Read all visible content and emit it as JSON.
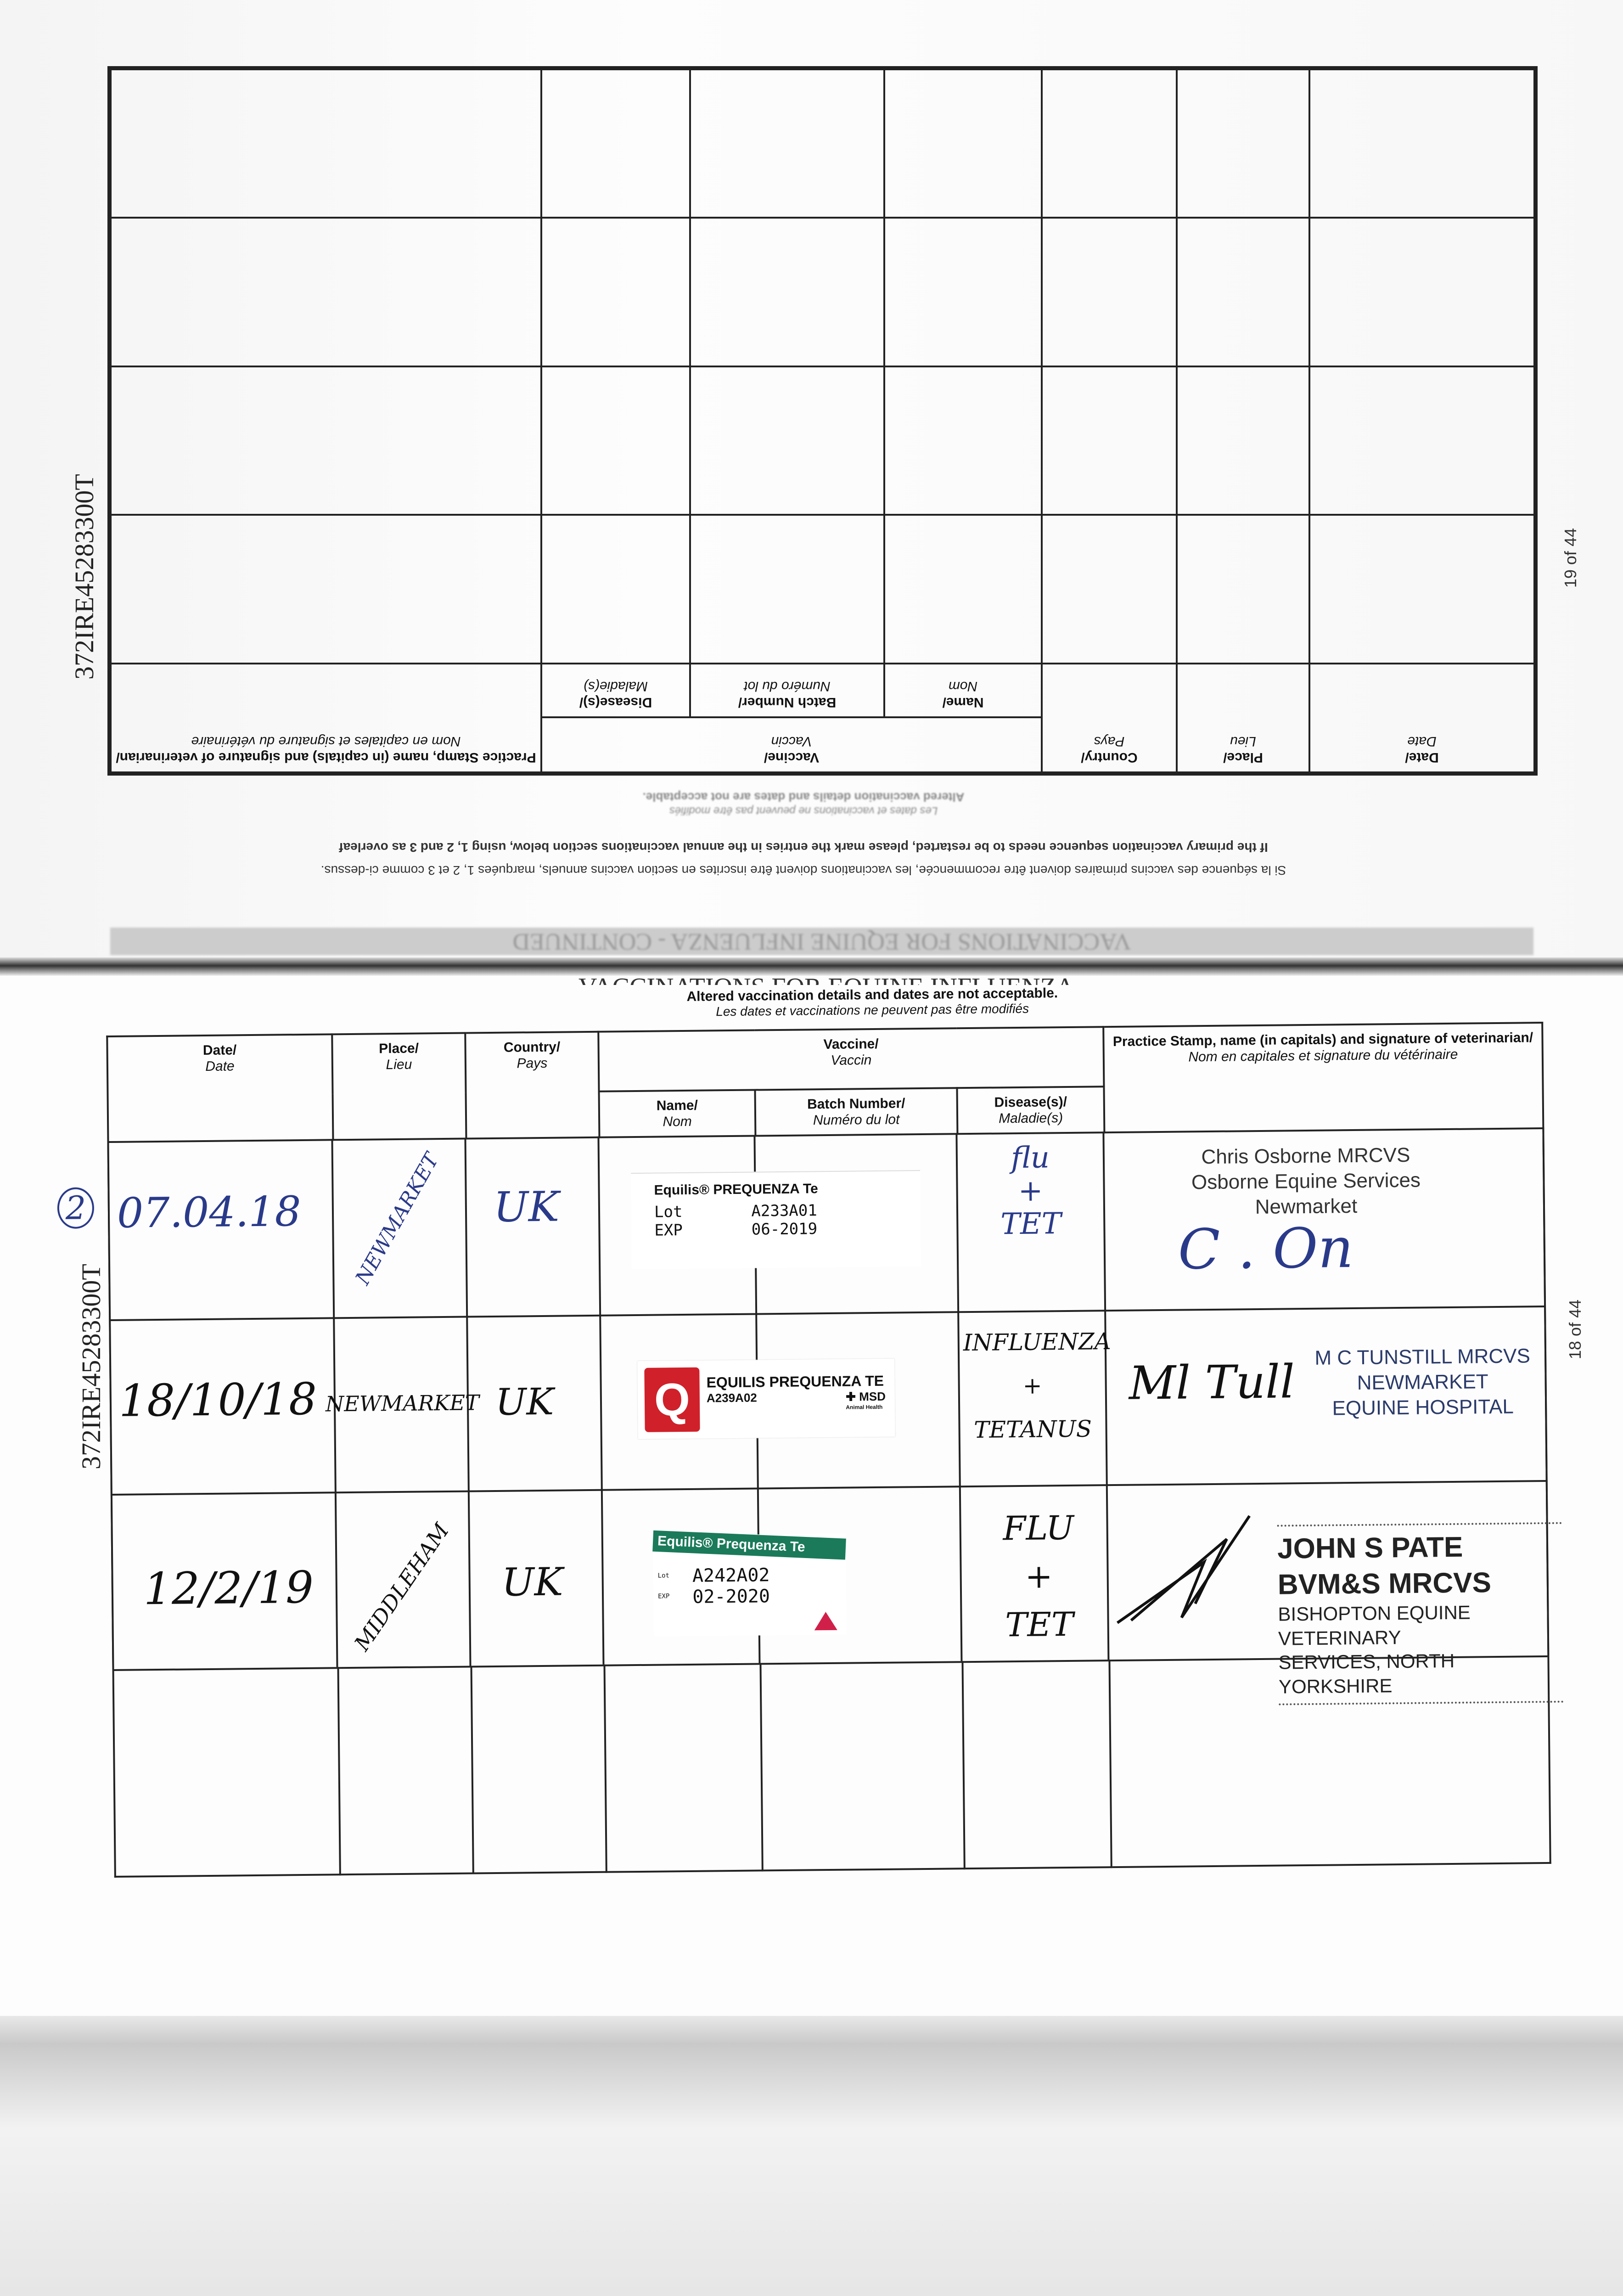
{
  "upper_page": {
    "id_number": "372IRE45283300T",
    "page_number": "19 of 44",
    "heading": "VACCINATIONS FOR EQUINE INFLUENZA - CONTINUED",
    "notice_en": "Altered vaccination details and dates are not acceptable.",
    "notice_fr": "Les dates et vaccinations ne peuvent pas être modifiés",
    "instruction_en": "If the primary vaccination sequence needs to be restarted, please mark the entries in the annual vaccinations section below, using 1, 2 and 3 as overleaf",
    "instruction_fr": "Si la séquence des vaccins primaires doivent être recommencée, les vaccinations doivent être inscrites en section vaccins annuels, marquées 1, 2 et 3 comme ci-dessus.",
    "rows": 4
  },
  "lower_page": {
    "id_number": "372IRE45283300T",
    "page_number": "18 of 44",
    "heading": "VACCINATIONS FOR EQUINE INFLUENZA",
    "notice_en": "Altered vaccination details and dates are not acceptable.",
    "notice_fr": "Les dates et vaccinations ne peuvent pas être modifiés"
  },
  "columns": {
    "date": "Date/",
    "date_fr": "Date",
    "place": "Place/",
    "place_fr": "Lieu",
    "country": "Country/",
    "country_fr": "Pays",
    "vaccine": "Vaccine/",
    "vaccine_fr": "Vaccin",
    "name": "Name/",
    "name_fr": "Nom",
    "batch": "Batch Number/",
    "batch_fr": "Numéro du lot",
    "disease": "Disease(s)/",
    "disease_fr": "Maladie(s)",
    "vet": "Practice Stamp, name (in capitals) and signature of veterinarian/",
    "vet_fr": "Nom en capitales et signature du vétérinaire"
  },
  "entries": [
    {
      "marker": "2",
      "date": "07.04.18",
      "place": "NEWMARKET",
      "country": "UK",
      "label": {
        "product": "Equilis® PREQUENZA Te",
        "lot_label": "Lot",
        "exp_label": "EXP",
        "lot": "A233A01",
        "exp": "06-2019"
      },
      "disease": [
        "flu",
        "+",
        "TET"
      ],
      "vet_lines": [
        "Chris Osborne MRCVS",
        "Osborne Equine Services",
        "Newmarket"
      ],
      "signature": "C. Osborne"
    },
    {
      "date": "18/10/18",
      "place": "NEWMARKET",
      "country": "UK",
      "label": {
        "product": "EQUILIS PREQUENZA TE",
        "lot": "A239A02",
        "brand": "MSD",
        "brand_sub": "Animal Health",
        "logo_letter": "Q"
      },
      "disease": [
        "INFLUENZA",
        "+",
        "TETANUS"
      ],
      "vet_lines": [
        "M C TUNSTILL MRCVS",
        "NEWMARKET",
        "EQUINE HOSPITAL"
      ],
      "signature": "M Tunstill"
    },
    {
      "date": "12/2/19",
      "place": "MIDDLEHAM",
      "country": "UK",
      "label": {
        "product": "Equilis® Prequenza Te",
        "lot_label": "Lot",
        "exp_label": "EXP",
        "lot": "A242A02",
        "exp": "02-2020"
      },
      "disease": [
        "FLU",
        "+",
        "TET"
      ],
      "vet_lines": [
        "JOHN S PATE BVM&S MRCVS",
        "BISHOPTON EQUINE VETERINARY",
        "SERVICES, NORTH YORKSHIRE"
      ],
      "signature": "J Pate"
    }
  ],
  "colors": {
    "ink_blue": "#2a3a8a",
    "label_red": "#d0202a",
    "label_green": "#1a7a5a"
  }
}
